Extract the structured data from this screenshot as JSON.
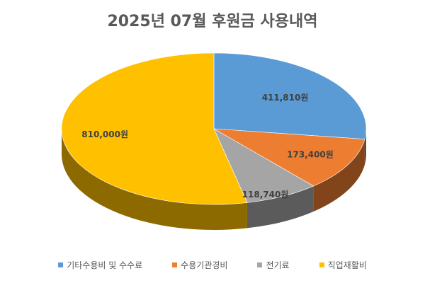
{
  "chart_data": {
    "type": "pie",
    "title": "2025년 07월 후원금 사용내역",
    "legend_position": "bottom",
    "style": "3d",
    "slices": [
      {
        "name": "기타수용비 및 수수료",
        "value": 411810,
        "label": "411,810원",
        "color": "#5B9BD5"
      },
      {
        "name": "수용기관경비",
        "value": 173400,
        "label": "173,400원",
        "color": "#ED7D31"
      },
      {
        "name": "전기료",
        "value": 118740,
        "label": "118,740원",
        "color": "#A5A5A5"
      },
      {
        "name": "직업재활비",
        "value": 810000,
        "label": "810,000원",
        "color": "#FFC000"
      }
    ]
  }
}
